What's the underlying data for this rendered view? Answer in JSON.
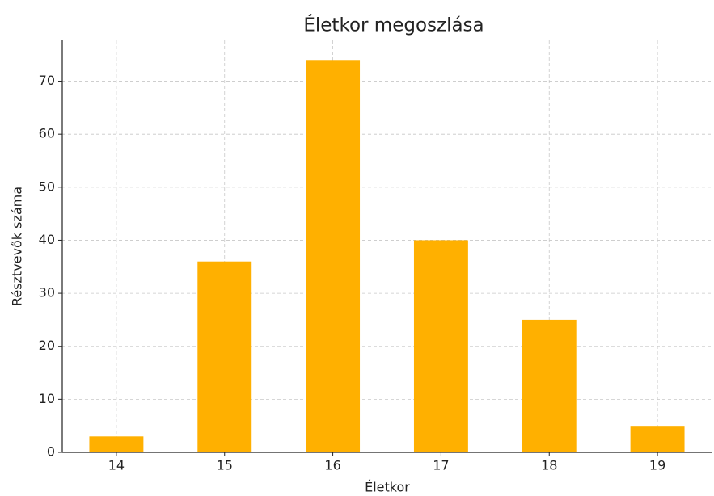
{
  "chart_data": {
    "type": "bar",
    "title": "Életkor megoszlása",
    "x_label": "Életkor",
    "y_label": "Résztvevők száma",
    "categories": [
      "14",
      "15",
      "16",
      "17",
      "18",
      "19"
    ],
    "values": [
      3,
      36,
      74,
      40,
      25,
      5
    ],
    "color": "#ffb000",
    "ylim": [
      0,
      77.7
    ],
    "yticks": [
      0,
      10,
      20,
      30,
      40,
      50,
      60,
      70
    ],
    "grid": true
  }
}
